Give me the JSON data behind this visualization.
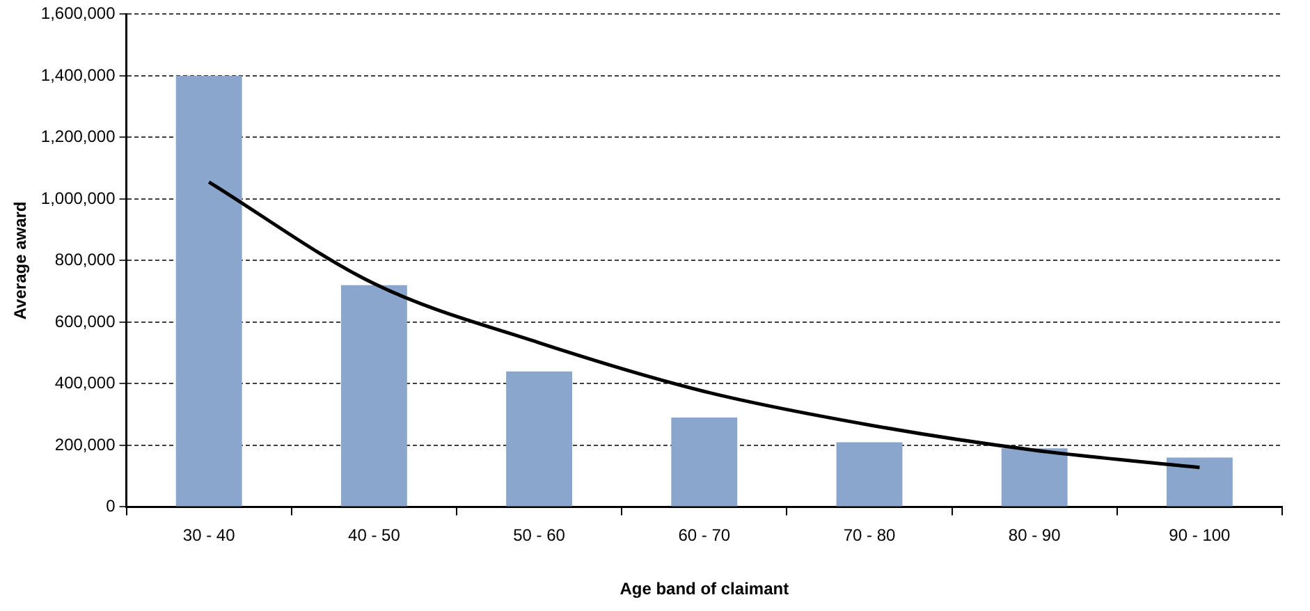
{
  "chart_data": {
    "type": "bar",
    "xlabel": "Age band of claimant",
    "ylabel": "Average award",
    "categories": [
      "30 - 40",
      "40 - 50",
      "50 - 60",
      "60 - 70",
      "70 - 80",
      "80 - 90",
      "90 - 100"
    ],
    "series": [
      {
        "color": "#8aa6cc",
        "values": [
          1400000,
          720000,
          440000,
          290000,
          210000,
          190000,
          160000
        ]
      },
      {
        "type": "line",
        "color": "#000000",
        "values": [
          1055000,
          725000,
          533000,
          375000,
          266000,
          184000,
          128000
        ]
      }
    ],
    "ylim": [
      0,
      1600000
    ],
    "yticks": [
      0,
      {
        "value": 200000,
        "label": "200,000"
      },
      {
        "value": 400000,
        "label": "400,000"
      },
      {
        "value": 600000,
        "label": "600,000"
      },
      {
        "value": 800000,
        "label": "800,000"
      },
      {
        "value": 1000000,
        "label": "1,000,000"
      },
      {
        "value": 1200000,
        "label": "1,200,000"
      },
      {
        "value": 1400000,
        "label": "1,400,000"
      },
      {
        "value": 1600000,
        "label": "1,600,000"
      }
    ],
    "grid": "y",
    "legend": false,
    "marker": "none",
    "line_style": "solid"
  }
}
